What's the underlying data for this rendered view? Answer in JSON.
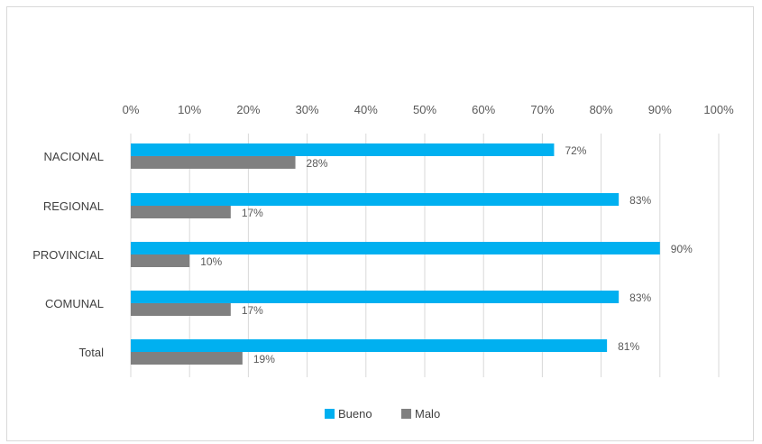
{
  "chart_data": {
    "type": "bar",
    "orientation": "horizontal",
    "categories": [
      "NACIONAL",
      "REGIONAL",
      "PROVINCIAL",
      "COMUNAL",
      "Total"
    ],
    "series": [
      {
        "name": "Bueno",
        "values": [
          72,
          83,
          90,
          83,
          81
        ],
        "labels": [
          "72%",
          "83%",
          "90%",
          "83%",
          "81%"
        ],
        "color": "#00B0F0"
      },
      {
        "name": "Malo",
        "values": [
          28,
          17,
          10,
          17,
          19
        ],
        "labels": [
          "28%",
          "17%",
          "10%",
          "17%",
          "19%"
        ],
        "color": "#808080"
      }
    ],
    "xlim": [
      0,
      100
    ],
    "xticks": [
      "0%",
      "10%",
      "20%",
      "30%",
      "40%",
      "50%",
      "60%",
      "70%",
      "80%",
      "90%",
      "100%"
    ],
    "x_axis_position": "top",
    "grid": true,
    "legend_placement": "bottom",
    "title": "",
    "xlabel": "",
    "ylabel": ""
  }
}
